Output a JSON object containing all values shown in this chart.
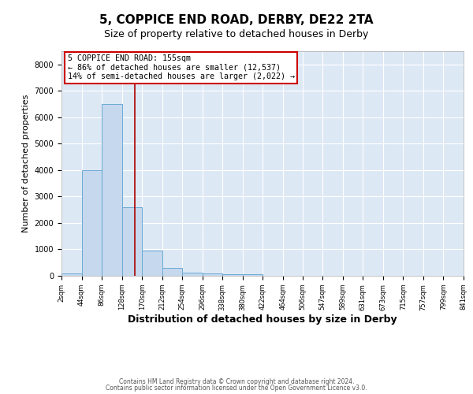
{
  "title": "5, COPPICE END ROAD, DERBY, DE22 2TA",
  "subtitle": "Size of property relative to detached houses in Derby",
  "xlabel": "Distribution of detached houses by size in Derby",
  "ylabel": "Number of detached properties",
  "bin_edges": [
    2,
    44,
    86,
    128,
    170,
    212,
    254,
    296,
    338,
    380,
    422,
    464,
    506,
    547,
    589,
    631,
    673,
    715,
    757,
    799,
    841
  ],
  "bar_heights": [
    75,
    4000,
    6500,
    2600,
    950,
    300,
    120,
    75,
    50,
    50,
    0,
    0,
    0,
    0,
    0,
    0,
    0,
    0,
    0,
    0
  ],
  "bar_color": "#c5d8ee",
  "bar_edge_color": "#6aaad4",
  "property_line_x": 155,
  "property_line_color": "#aa0000",
  "ylim": [
    0,
    8500
  ],
  "xlim": [
    2,
    841
  ],
  "annotation_text": "5 COPPICE END ROAD: 155sqm\n← 86% of detached houses are smaller (12,537)\n14% of semi-detached houses are larger (2,022) →",
  "annotation_box_color": "#cc0000",
  "footer1": "Contains HM Land Registry data © Crown copyright and database right 2024.",
  "footer2": "Contains public sector information licensed under the Open Government Licence v3.0.",
  "plot_bg_color": "#dde8f5",
  "title_fontsize": 11,
  "subtitle_fontsize": 9,
  "xlabel_fontsize": 9,
  "ylabel_fontsize": 8,
  "tick_fontsize": 6,
  "ytick_fontsize": 7,
  "tick_labels": [
    "2sqm",
    "44sqm",
    "86sqm",
    "128sqm",
    "170sqm",
    "212sqm",
    "254sqm",
    "296sqm",
    "338sqm",
    "380sqm",
    "422sqm",
    "464sqm",
    "506sqm",
    "547sqm",
    "589sqm",
    "631sqm",
    "673sqm",
    "715sqm",
    "757sqm",
    "799sqm",
    "841sqm"
  ]
}
